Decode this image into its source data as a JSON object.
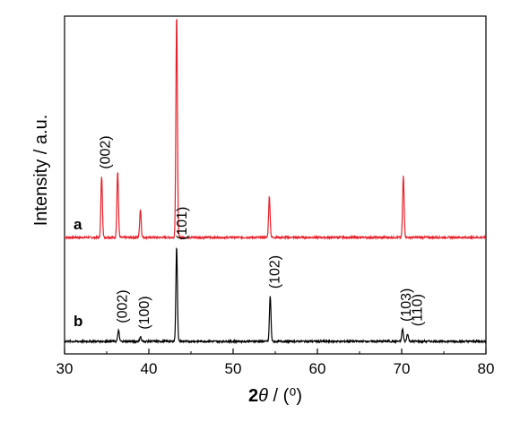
{
  "chart_data": {
    "type": "line",
    "title": "",
    "xlabel_prefix": "2",
    "xlabel_theta": "θ",
    "xlabel_suffix": " / (⁰)",
    "ylabel": "Intensity / a.u.",
    "xlim": [
      30,
      80
    ],
    "x_ticks": [
      "30",
      "40",
      "50",
      "60",
      "70",
      "80"
    ],
    "y_ticks_shown": false,
    "grid": false,
    "series": [
      {
        "name": "a",
        "color": "#e8202a",
        "baseline": 0.0,
        "peaks": [
          {
            "x": 34.4,
            "h": 0.39
          },
          {
            "x": 36.3,
            "h": 0.42
          },
          {
            "x": 39.0,
            "h": 0.18
          },
          {
            "x": 43.3,
            "h": 1.42
          },
          {
            "x": 54.3,
            "h": 0.26
          },
          {
            "x": 70.2,
            "h": 0.39
          }
        ],
        "labels": [
          {
            "x": 34.4,
            "text": "(002)"
          }
        ]
      },
      {
        "name": "b",
        "color": "#000000",
        "baseline": 0.0,
        "peaks": [
          {
            "x": 36.4,
            "h": 0.07
          },
          {
            "x": 39.0,
            "h": 0.03
          },
          {
            "x": 43.3,
            "h": 0.6
          },
          {
            "x": 54.4,
            "h": 0.29
          },
          {
            "x": 70.1,
            "h": 0.08
          },
          {
            "x": 70.7,
            "h": 0.05
          }
        ],
        "labels": [
          {
            "x": 36.4,
            "text": "(002)"
          },
          {
            "x": 39.0,
            "text": "(100)"
          },
          {
            "x": 43.5,
            "text": "(101)"
          },
          {
            "x": 54.5,
            "text": "(102)"
          },
          {
            "x": 70.1,
            "text": "(103)"
          },
          {
            "x": 71.4,
            "text": "(110)"
          }
        ]
      }
    ]
  }
}
